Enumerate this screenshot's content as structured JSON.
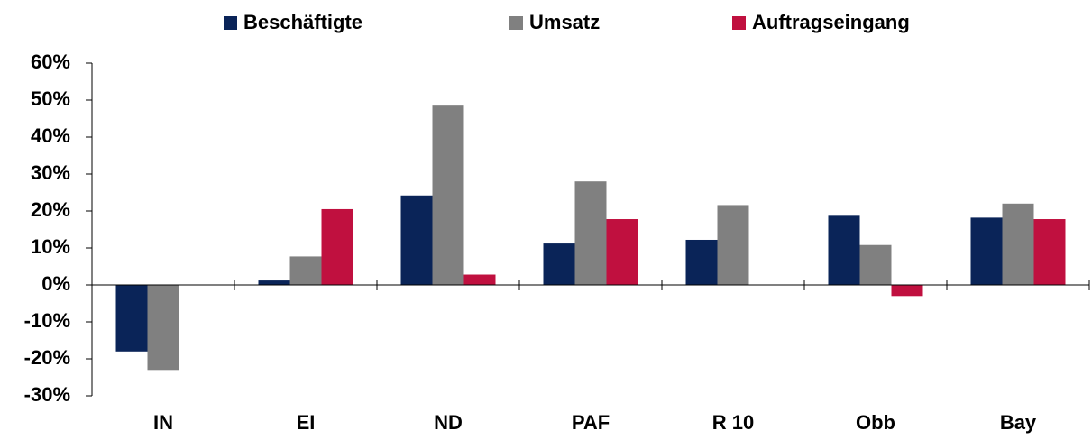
{
  "chart_data": {
    "type": "bar",
    "categories": [
      "IN",
      "EI",
      "ND",
      "PAF",
      "R 10",
      "Obb",
      "Bay"
    ],
    "series": [
      {
        "name": "Beschäftigte",
        "color": "#0a2458",
        "values": [
          -18,
          1.2,
          24.2,
          11.2,
          12.2,
          18.7,
          18.2
        ]
      },
      {
        "name": "Umsatz",
        "color": "#808080",
        "values": [
          -23,
          7.7,
          48.5,
          28,
          21.6,
          10.8,
          22
        ]
      },
      {
        "name": "Auftragseingang",
        "color": "#c0103f",
        "values": [
          null,
          20.5,
          2.8,
          17.8,
          null,
          -3,
          17.8
        ]
      }
    ],
    "ylim": [
      -30,
      60
    ],
    "yticks": [
      {
        "value": -30,
        "label": "-30%"
      },
      {
        "value": -20,
        "label": "-20%"
      },
      {
        "value": -10,
        "label": "-10%"
      },
      {
        "value": 0,
        "label": "0%"
      },
      {
        "value": 10,
        "label": "10%"
      },
      {
        "value": 20,
        "label": "20%"
      },
      {
        "value": 30,
        "label": "30%"
      },
      {
        "value": 40,
        "label": "40%"
      },
      {
        "value": 50,
        "label": "50%"
      },
      {
        "value": 60,
        "label": "60%"
      }
    ],
    "legend": "top",
    "grid": false
  }
}
